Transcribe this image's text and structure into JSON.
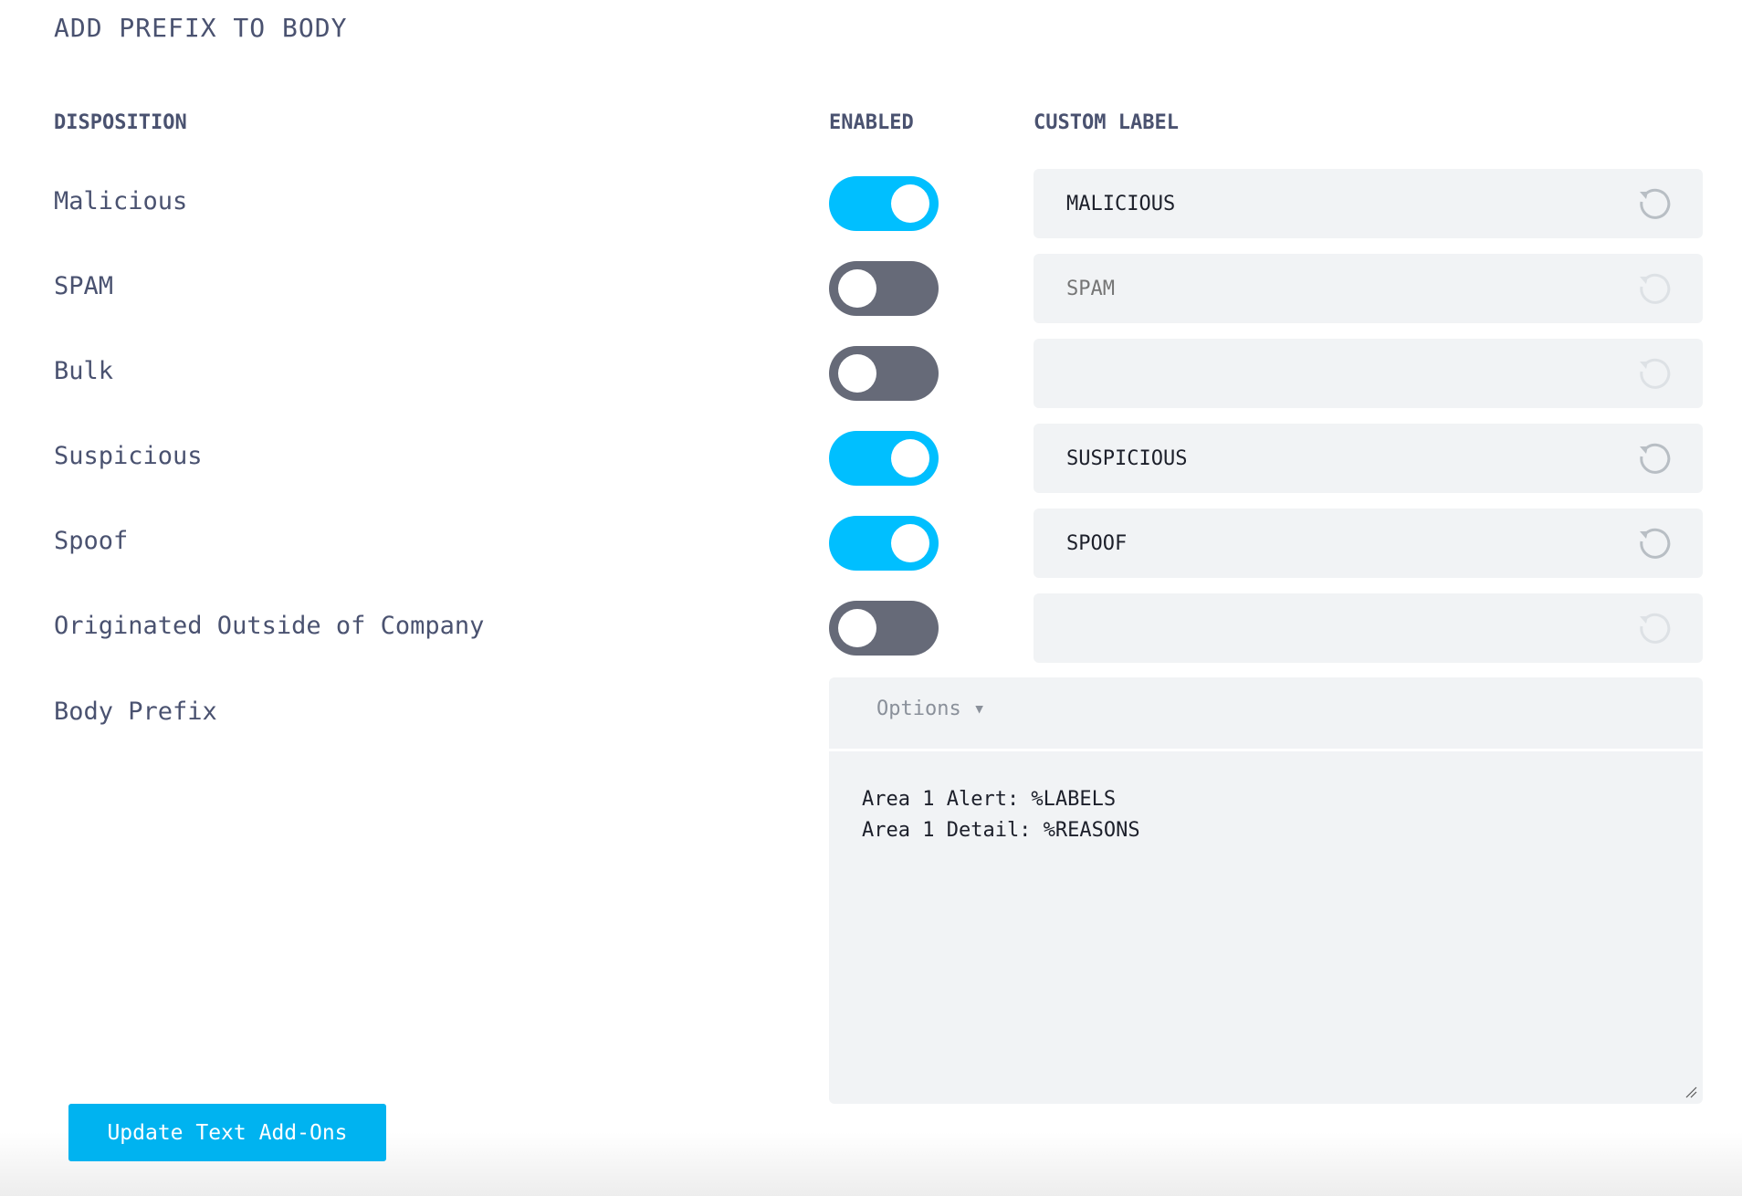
{
  "section_title": "ADD PREFIX TO BODY",
  "headers": {
    "disposition": "DISPOSITION",
    "enabled": "ENABLED",
    "custom_label": "CUSTOM LABEL"
  },
  "rows": [
    {
      "label": "Malicious",
      "enabled": true,
      "custom_label": "MALICIOUS",
      "placeholder": ""
    },
    {
      "label": "SPAM",
      "enabled": false,
      "custom_label": "",
      "placeholder": "SPAM"
    },
    {
      "label": "Bulk",
      "enabled": false,
      "custom_label": "",
      "placeholder": ""
    },
    {
      "label": "Suspicious",
      "enabled": true,
      "custom_label": "SUSPICIOUS",
      "placeholder": ""
    },
    {
      "label": "Spoof",
      "enabled": true,
      "custom_label": "SPOOF",
      "placeholder": ""
    },
    {
      "label": "Originated Outside of Company",
      "enabled": false,
      "custom_label": "",
      "placeholder": ""
    }
  ],
  "body_prefix": {
    "label": "Body Prefix",
    "options_label": "Options ▾",
    "value": "Area 1 Alert: %LABELS\nArea 1 Detail: %REASONS"
  },
  "submit_label": "Update Text Add-Ons",
  "colors": {
    "toggle_on": "#00bfff",
    "toggle_off": "#666a78",
    "button": "#00b3f0",
    "field_bg": "#f1f3f5"
  }
}
